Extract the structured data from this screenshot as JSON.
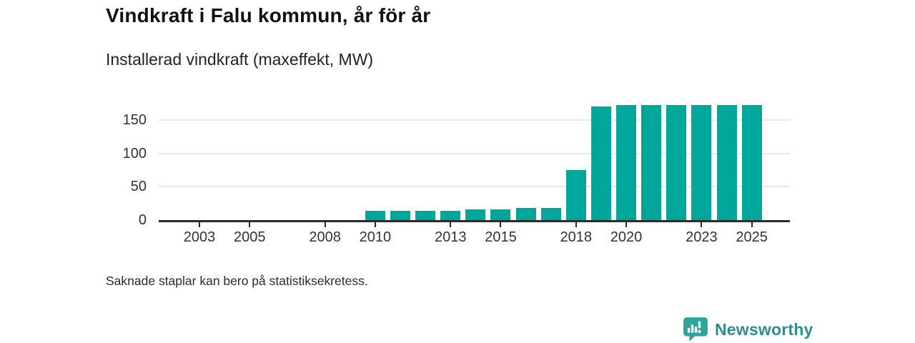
{
  "header": {
    "title": "Vindkraft i Falu kommun, år för år",
    "subtitle": "Installerad vindkraft (maxeffekt, MW)"
  },
  "footer": {
    "note": "Saknade staplar kan bero på statistiksekretess.",
    "brand_name": "Newsworthy",
    "brand_icon": "newsworthy-bubble-chart-icon"
  },
  "colors": {
    "bar": "#00a699",
    "axis": "#2b2b2b",
    "grid": "#e7e7e7",
    "brand_text": "#2f8e8a",
    "brand_icon": "#2fa39a",
    "title_text": "#111111"
  },
  "chart_data": {
    "type": "bar",
    "title": "Vindkraft i Falu kommun, år för år",
    "subtitle": "Installerad vindkraft (maxeffekt, MW)",
    "x": [
      2002,
      2003,
      2004,
      2005,
      2006,
      2007,
      2008,
      2009,
      2010,
      2011,
      2012,
      2013,
      2014,
      2015,
      2016,
      2017,
      2018,
      2019,
      2020,
      2021,
      2022,
      2023,
      2024,
      2025
    ],
    "values": [
      null,
      null,
      null,
      null,
      null,
      null,
      null,
      null,
      14,
      14,
      14,
      14,
      16,
      16,
      18,
      18,
      75,
      170,
      172,
      172,
      172,
      172,
      172,
      172
    ],
    "xticks": [
      2003,
      2005,
      2008,
      2010,
      2013,
      2015,
      2018,
      2020,
      2023,
      2025
    ],
    "yticks": [
      0,
      50,
      100,
      150
    ],
    "ylim": [
      0,
      180
    ],
    "xlabel": "",
    "ylabel": "MW",
    "grid": "horizontal",
    "legend": null,
    "annotation": "Saknade staplar kan bero på statistiksekretess."
  }
}
